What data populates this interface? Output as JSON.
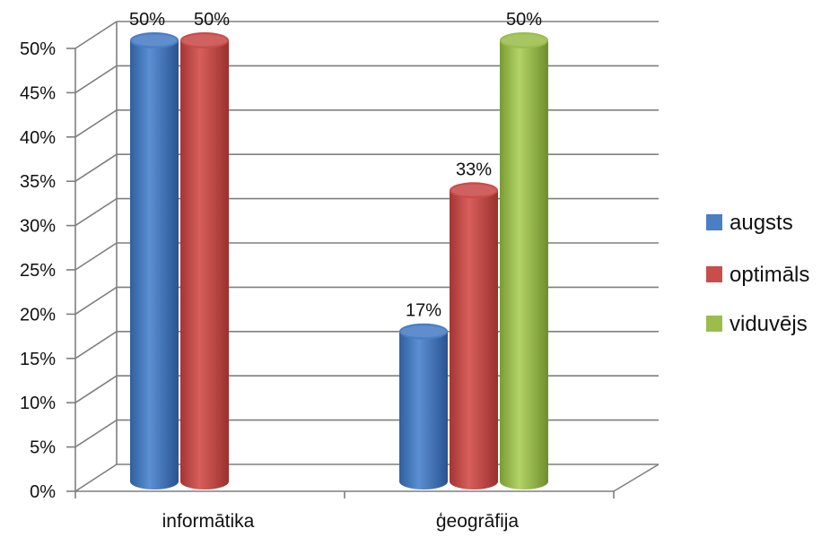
{
  "chart_data": {
    "type": "bar",
    "categories": [
      "informātika",
      "ģeogrāfija"
    ],
    "series": [
      {
        "name": "augsts",
        "values": [
          50,
          17
        ],
        "labels": [
          "50%",
          "17%"
        ],
        "color": "#4a7ec5"
      },
      {
        "name": "optimāls",
        "values": [
          50,
          33
        ],
        "labels": [
          "50%",
          "33%"
        ],
        "color": "#c94d4a"
      },
      {
        "name": "viduvējs",
        "values": [
          null,
          50
        ],
        "labels": [
          null,
          "50%"
        ],
        "color": "#9bbd4d"
      }
    ],
    "ylim": [
      0,
      50
    ],
    "yticks": [
      "0%",
      "5%",
      "10%",
      "15%",
      "20%",
      "25%",
      "30%",
      "35%",
      "40%",
      "45%",
      "50%"
    ],
    "grid": true,
    "legend": "right",
    "style": "3d-cylinder"
  }
}
